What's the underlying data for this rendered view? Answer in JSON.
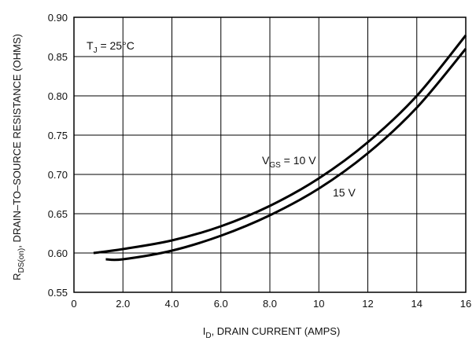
{
  "chart_data": {
    "type": "line",
    "title": "",
    "xlabel": {
      "main": "I",
      "sub": "D",
      "rest": ", DRAIN CURRENT (AMPS)"
    },
    "ylabel": {
      "main": "R",
      "sub": "DS(on)",
      "rest": ", DRAIN–TO–SOURCE RESISTANCE (OHMS)"
    },
    "xlim": [
      0,
      16
    ],
    "ylim": [
      0.55,
      0.9
    ],
    "xticks": [
      0,
      2,
      4,
      6,
      8,
      10,
      12,
      14,
      16
    ],
    "xtick_labels": [
      "0",
      "2.0",
      "4.0",
      "6.0",
      "8.0",
      "10",
      "12",
      "14",
      "16"
    ],
    "yticks": [
      0.55,
      0.6,
      0.65,
      0.7,
      0.75,
      0.8,
      0.85,
      0.9
    ],
    "ytick_labels": [
      "0.55",
      "0.60",
      "0.65",
      "0.70",
      "0.75",
      "0.80",
      "0.85",
      "0.90"
    ],
    "grid": true,
    "series": [
      {
        "name": "V_GS = 10 V",
        "x": [
          0.8,
          2,
          4,
          6,
          8,
          10,
          12,
          14,
          16
        ],
        "y": [
          0.6,
          0.605,
          0.616,
          0.634,
          0.66,
          0.695,
          0.741,
          0.8,
          0.877
        ]
      },
      {
        "name": "15 V",
        "x": [
          1.3,
          2,
          4,
          6,
          8,
          10,
          12,
          14,
          16
        ],
        "y": [
          0.592,
          0.592,
          0.603,
          0.622,
          0.648,
          0.682,
          0.727,
          0.785,
          0.86
        ]
      }
    ],
    "annotations": {
      "temp": {
        "main": "T",
        "sub": "J",
        "rest": " = 25°C"
      },
      "vgs10": {
        "main": "V",
        "sub": "GS",
        "rest": " = 10 V"
      },
      "vgs15": "15 V"
    }
  }
}
